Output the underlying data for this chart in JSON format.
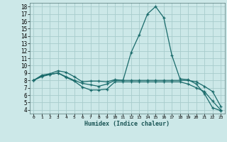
{
  "xlabel": "Humidex (Indice chaleur)",
  "bg_color": "#cce8e8",
  "grid_color": "#a8cccc",
  "line_color": "#1a6b6b",
  "ylim": [
    3.5,
    18.5
  ],
  "xlim": [
    -0.5,
    23.5
  ],
  "yticks": [
    4,
    5,
    6,
    7,
    8,
    9,
    10,
    11,
    12,
    13,
    14,
    15,
    16,
    17,
    18
  ],
  "xticks": [
    0,
    1,
    2,
    3,
    4,
    5,
    6,
    7,
    8,
    9,
    10,
    11,
    12,
    13,
    14,
    15,
    16,
    17,
    18,
    19,
    20,
    21,
    22,
    23
  ],
  "line1_x": [
    0,
    1,
    2,
    3,
    4,
    5,
    6,
    7,
    8,
    9,
    10,
    11,
    12,
    13,
    14,
    15,
    16,
    17,
    18,
    19,
    20,
    21,
    22,
    23
  ],
  "line1_y": [
    8.0,
    8.7,
    8.9,
    9.3,
    9.1,
    8.5,
    7.8,
    7.9,
    7.9,
    7.8,
    8.1,
    8.0,
    11.8,
    14.2,
    17.0,
    18.0,
    16.5,
    11.4,
    8.2,
    8.1,
    7.5,
    6.2,
    4.3,
    3.9
  ],
  "line2_x": [
    0,
    1,
    2,
    3,
    4,
    5,
    6,
    7,
    8,
    9,
    10,
    11,
    12,
    13,
    14,
    15,
    16,
    17,
    18,
    19,
    20,
    21,
    22,
    23
  ],
  "line2_y": [
    8.0,
    8.6,
    8.8,
    9.0,
    8.5,
    8.0,
    7.6,
    7.4,
    7.2,
    7.5,
    8.0,
    8.0,
    8.0,
    8.0,
    8.0,
    8.0,
    8.0,
    8.0,
    8.0,
    8.0,
    7.8,
    7.2,
    6.5,
    4.5
  ],
  "line3_x": [
    0,
    1,
    2,
    3,
    4,
    5,
    6,
    7,
    8,
    9,
    10,
    11,
    12,
    13,
    14,
    15,
    16,
    17,
    18,
    19,
    20,
    21,
    22,
    23
  ],
  "line3_y": [
    8.0,
    8.5,
    8.8,
    9.0,
    8.4,
    7.9,
    7.1,
    6.7,
    6.7,
    6.8,
    7.8,
    7.8,
    7.8,
    7.8,
    7.8,
    7.8,
    7.8,
    7.8,
    7.8,
    7.5,
    7.0,
    6.5,
    5.2,
    4.0
  ]
}
